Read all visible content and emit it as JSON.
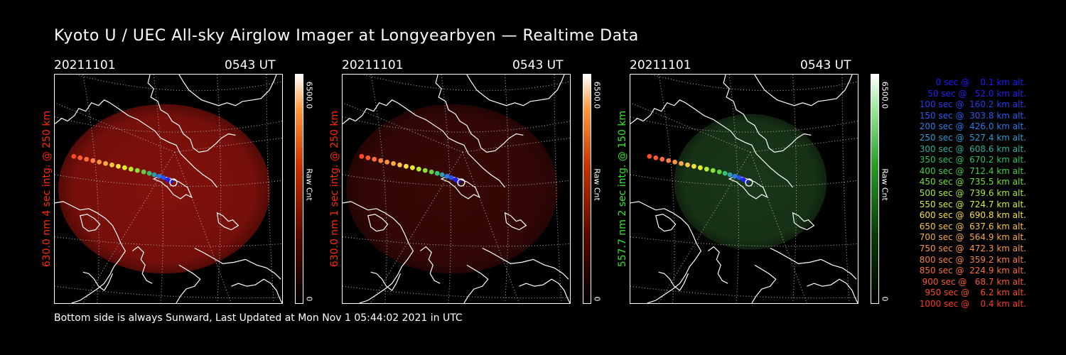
{
  "title": "Kyoto U / UEC All-sky Airglow Imager at Longyearbyen — Realtime Data",
  "footer": "Bottom side is always Sunward, Last Updated at Mon Nov  1 05:44:02 2021 in UTC",
  "colors": {
    "red": "#ff2a00",
    "green": "#2ee62e",
    "background": "#000000"
  },
  "panels": [
    {
      "date": "20211101",
      "time": "0543 UT",
      "ylabel": "630.0 nm 4 sec intg. @ 250 km",
      "label_color": "#ff2a00",
      "colorbar_max": "6500.0",
      "colorbar_min": "0",
      "colorbar_unit": "Raw Cnt",
      "glow_color": "#8a120c"
    },
    {
      "date": "20211101",
      "time": "0543 UT",
      "ylabel": "630.0 nm 1 sec intg. @ 250 km",
      "label_color": "#ff2a00",
      "colorbar_max": "6500.0",
      "colorbar_min": "0",
      "colorbar_unit": "Raw Cnt",
      "glow_color": "#3a0806"
    },
    {
      "date": "20211101",
      "time": "0543 UT",
      "ylabel": "557.7 nm 2 sec intg. @ 150 km",
      "label_color": "#2ee62e",
      "colorbar_max": "6500.0",
      "colorbar_min": "0",
      "colorbar_unit": "Raw Cnt",
      "glow_color": "#1a3a1a"
    }
  ],
  "legend": [
    {
      "text": "   0 sec @    0.1 km alt.",
      "color": "#1a1aff"
    },
    {
      "text": "  50 sec @   52.0 km alt.",
      "color": "#2222ee"
    },
    {
      "text": " 100 sec @  160.2 km alt.",
      "color": "#2a3aee"
    },
    {
      "text": " 150 sec @  303.8 km alt.",
      "color": "#2a5aee"
    },
    {
      "text": " 200 sec @  426.0 km alt.",
      "color": "#2a7ae6"
    },
    {
      "text": " 250 sec @  527.4 km alt.",
      "color": "#2a9ad0"
    },
    {
      "text": " 300 sec @  608.6 km alt.",
      "color": "#2ab09a"
    },
    {
      "text": " 350 sec @  670.2 km alt.",
      "color": "#2ac060"
    },
    {
      "text": " 400 sec @  712.4 km alt.",
      "color": "#40d040"
    },
    {
      "text": " 450 sec @  735.5 km alt.",
      "color": "#70e030"
    },
    {
      "text": " 500 sec @  739.6 km alt.",
      "color": "#a8ec30"
    },
    {
      "text": " 550 sec @  724.7 km alt.",
      "color": "#dcec30"
    },
    {
      "text": " 600 sec @  690.8 km alt.",
      "color": "#f6e040"
    },
    {
      "text": " 650 sec @  637.6 km alt.",
      "color": "#f8c440"
    },
    {
      "text": " 700 sec @  564.9 km alt.",
      "color": "#f8aa40"
    },
    {
      "text": " 750 sec @  472.3 km alt.",
      "color": "#f89440"
    },
    {
      "text": " 800 sec @  359.2 km alt.",
      "color": "#f88040"
    },
    {
      "text": " 850 sec @  224.9 km alt.",
      "color": "#f86c3a"
    },
    {
      "text": " 900 sec @   68.7 km alt.",
      "color": "#f85a30"
    },
    {
      "text": " 950 sec @    6.2 km alt.",
      "color": "#f84a28"
    },
    {
      "text": "1000 sec @    0.4 km alt.",
      "color": "#f83a20"
    }
  ]
}
